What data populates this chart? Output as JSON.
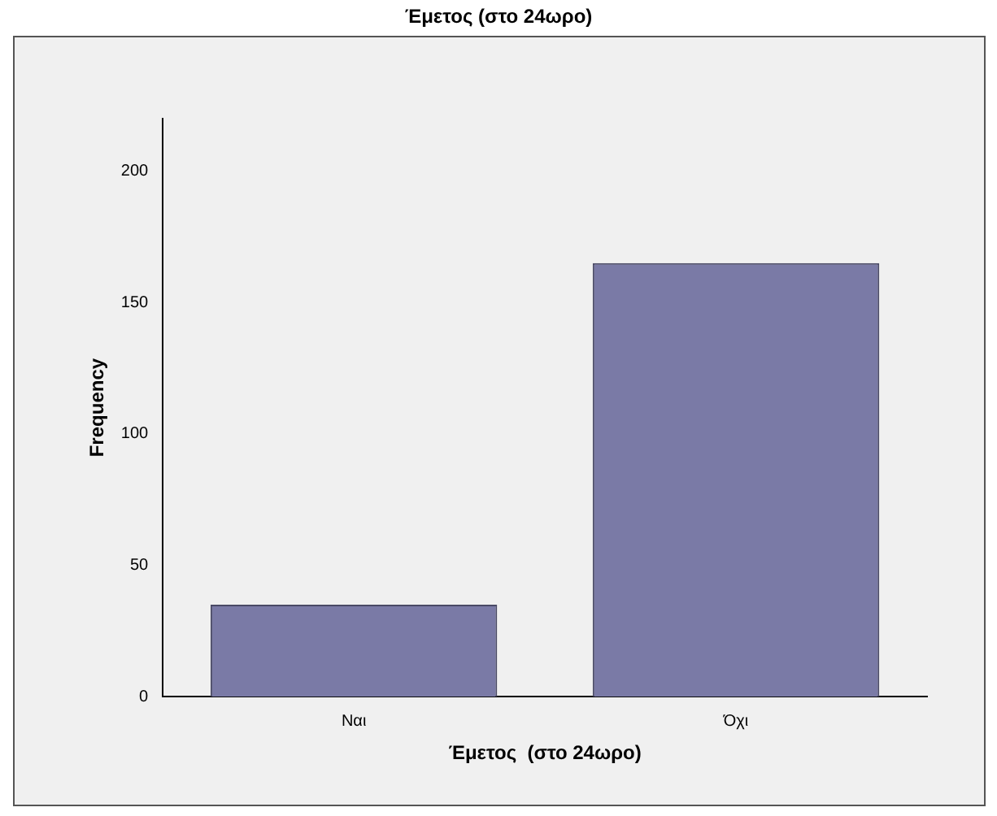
{
  "chart_data": {
    "type": "bar",
    "title": "Έμετος  (στο 24ωρο)",
    "xlabel": "Έμετος  (στο 24ωρο)",
    "ylabel": "Frequency",
    "categories": [
      "Ναι",
      "Όχι"
    ],
    "values": [
      35,
      165
    ],
    "color": "#7a7aa6",
    "ylim": [
      0,
      220
    ],
    "yticks": [
      0,
      50,
      100,
      150,
      200
    ],
    "grid": false,
    "legend": false
  }
}
